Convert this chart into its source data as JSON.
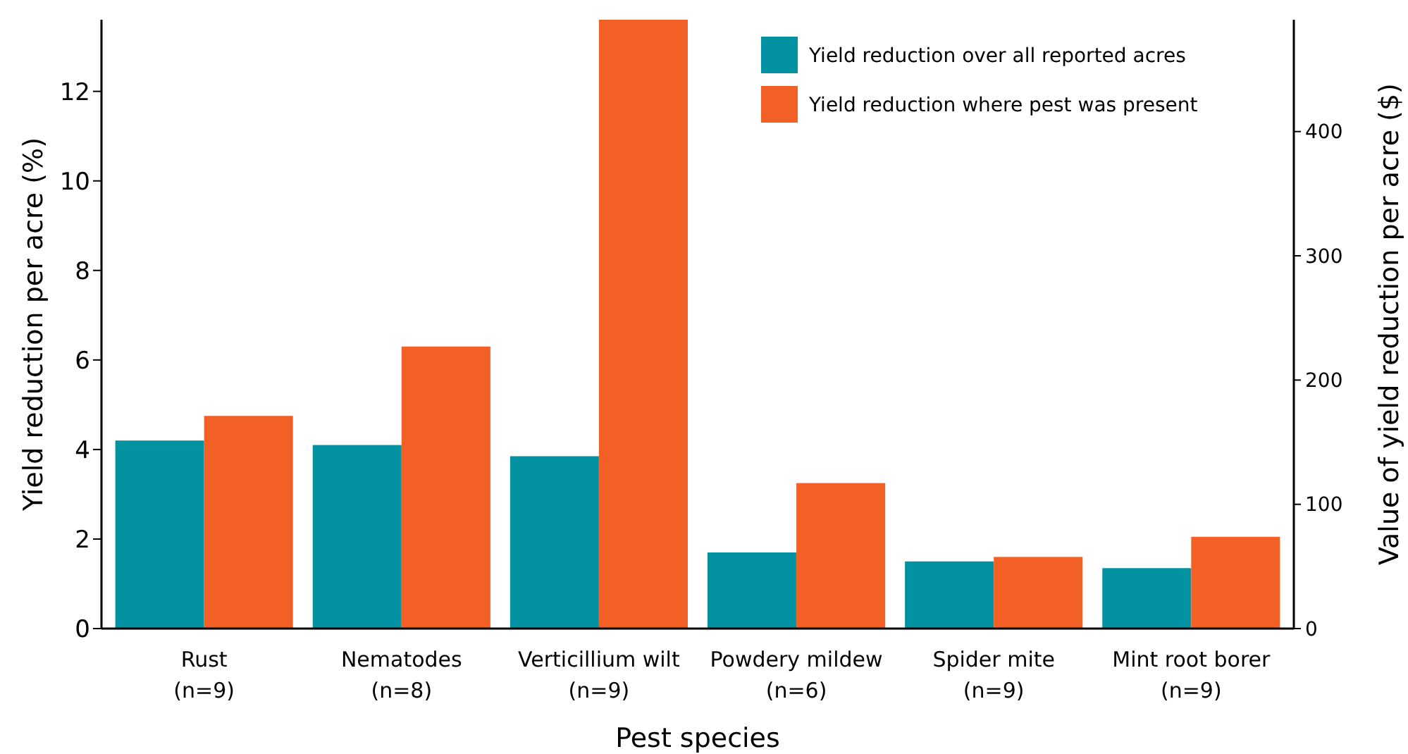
{
  "chart_data": {
    "type": "bar",
    "xlabel": "Pest species",
    "ylabel": "Yield reduction per acre (%)",
    "y2label": "Value of yield reduction per acre ($)",
    "categories": [
      "Rust\n(n=9)",
      "Nematodes\n(n=8)",
      "Verticillium wilt\n(n=9)",
      "Powdery mildew\n(n=6)",
      "Spider mite\n(n=9)",
      "Mint root borer\n(n=9)"
    ],
    "series": [
      {
        "name": "Yield reduction over all reported acres",
        "color": "#0392a2",
        "values": [
          4.2,
          4.1,
          3.85,
          1.7,
          1.5,
          1.35
        ]
      },
      {
        "name": "Yield reduction where pest was present",
        "color": "#f26026",
        "values": [
          4.75,
          6.3,
          13.6,
          3.25,
          1.6,
          2.05
        ]
      }
    ],
    "ylim": [
      0,
      13.6
    ],
    "yticks": [
      0,
      2,
      4,
      6,
      8,
      10,
      12
    ],
    "y2lim": [
      0,
      490
    ],
    "y2ticks": [
      0,
      100,
      200,
      300,
      400
    ],
    "legend": "top right",
    "grid": false
  }
}
